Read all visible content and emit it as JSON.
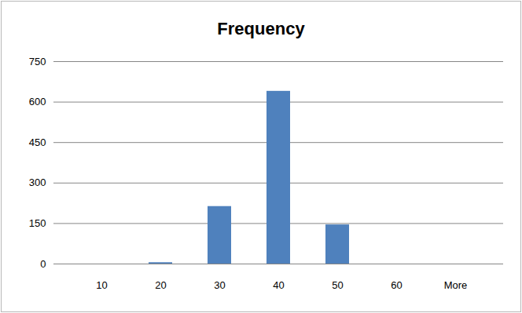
{
  "chart_data": {
    "type": "bar",
    "title": "Frequency",
    "categories": [
      "10",
      "20",
      "30",
      "40",
      "50",
      "60",
      "More"
    ],
    "values": [
      0,
      5,
      213,
      640,
      145,
      0,
      0
    ],
    "color": "#4f81bd",
    "ylim": [
      0,
      750
    ],
    "yticks": [
      0,
      150,
      300,
      450,
      600,
      750
    ],
    "grid": true
  }
}
